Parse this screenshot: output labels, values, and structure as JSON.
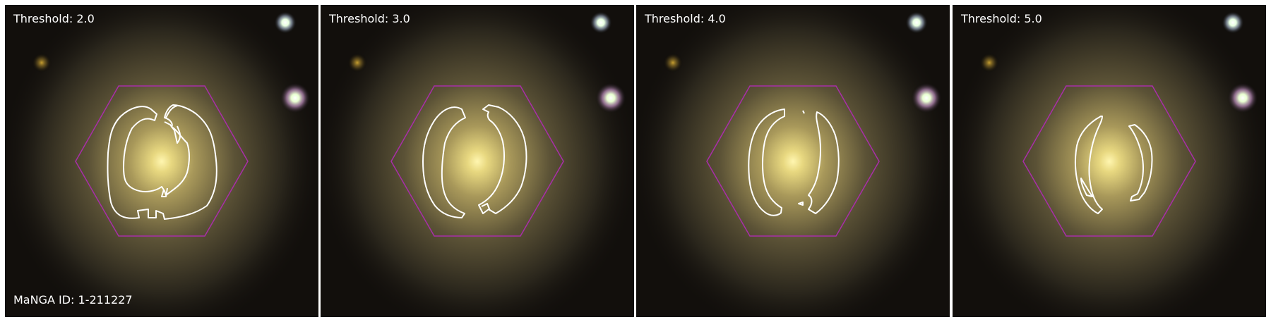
{
  "figure": {
    "panels": [
      {
        "label": "Threshold: 2.0"
      },
      {
        "label": "Threshold: 3.0"
      },
      {
        "label": "Threshold: 4.0"
      },
      {
        "label": "Threshold: 5.0"
      }
    ],
    "manga_id_label": "MaNGA ID: 1-211227"
  },
  "colors": {
    "hexagon": "#a82ea8",
    "contour": "#ffffff",
    "background": "#120f0c",
    "galaxy_core": "#fff0a0",
    "galaxy_halo": "#6a6038"
  }
}
